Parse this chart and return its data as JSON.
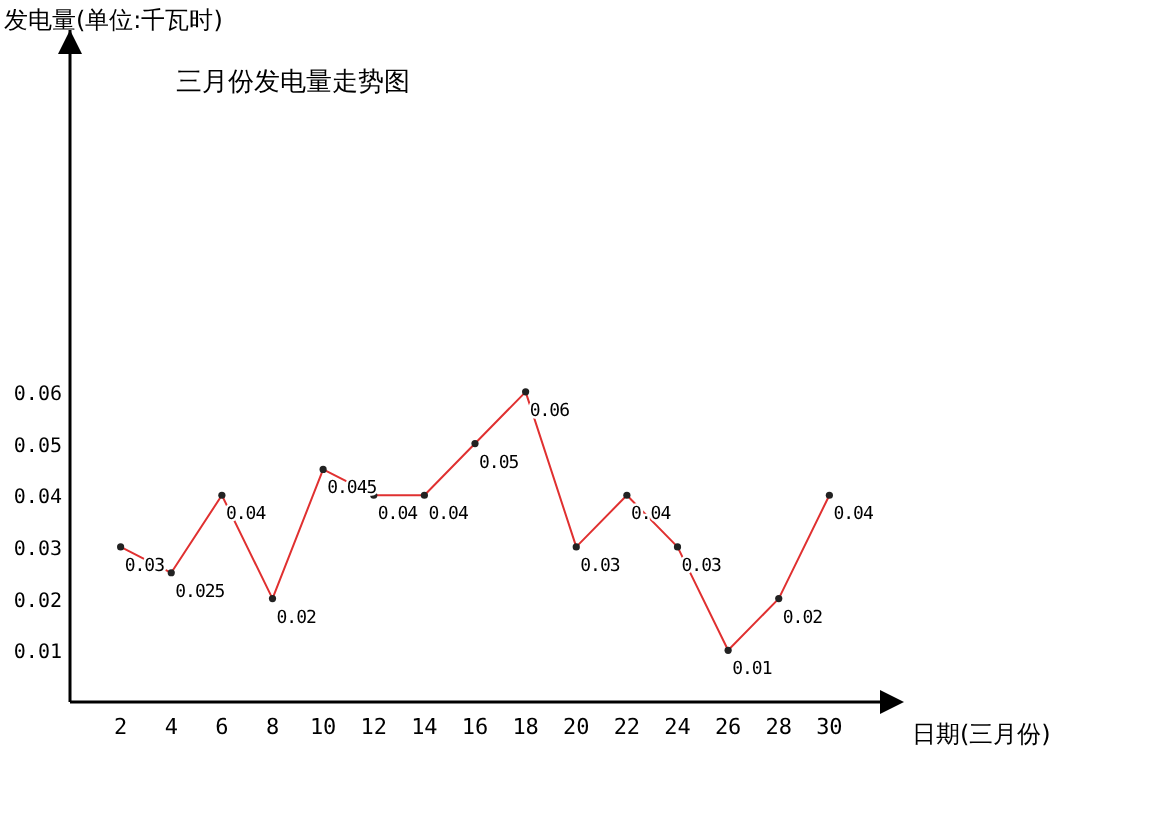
{
  "chart_data": {
    "type": "line",
    "title": "三月份发电量走势图",
    "xlabel": "日期(三月份)",
    "ylabel": "发电量(单位:千瓦时)",
    "x": [
      2,
      4,
      6,
      8,
      10,
      12,
      14,
      16,
      18,
      20,
      22,
      24,
      26,
      28,
      30
    ],
    "series": [
      {
        "color": "#e03030",
        "values": [
          0.03,
          0.025,
          0.04,
          0.02,
          0.045,
          0.04,
          0.04,
          0.05,
          0.06,
          0.03,
          0.04,
          0.03,
          0.01,
          0.02,
          0.04
        ]
      }
    ],
    "xlim": [
      0,
      32
    ],
    "ylim": [
      0,
      0.13
    ],
    "xticks": [
      2,
      4,
      6,
      8,
      10,
      12,
      14,
      16,
      18,
      20,
      22,
      24,
      26,
      28,
      30
    ],
    "yticks": [
      0.01,
      0.02,
      0.03,
      0.04,
      0.05,
      0.06
    ],
    "data_labels": true,
    "marker": "circle",
    "line_style": "solid",
    "grid": false
  }
}
